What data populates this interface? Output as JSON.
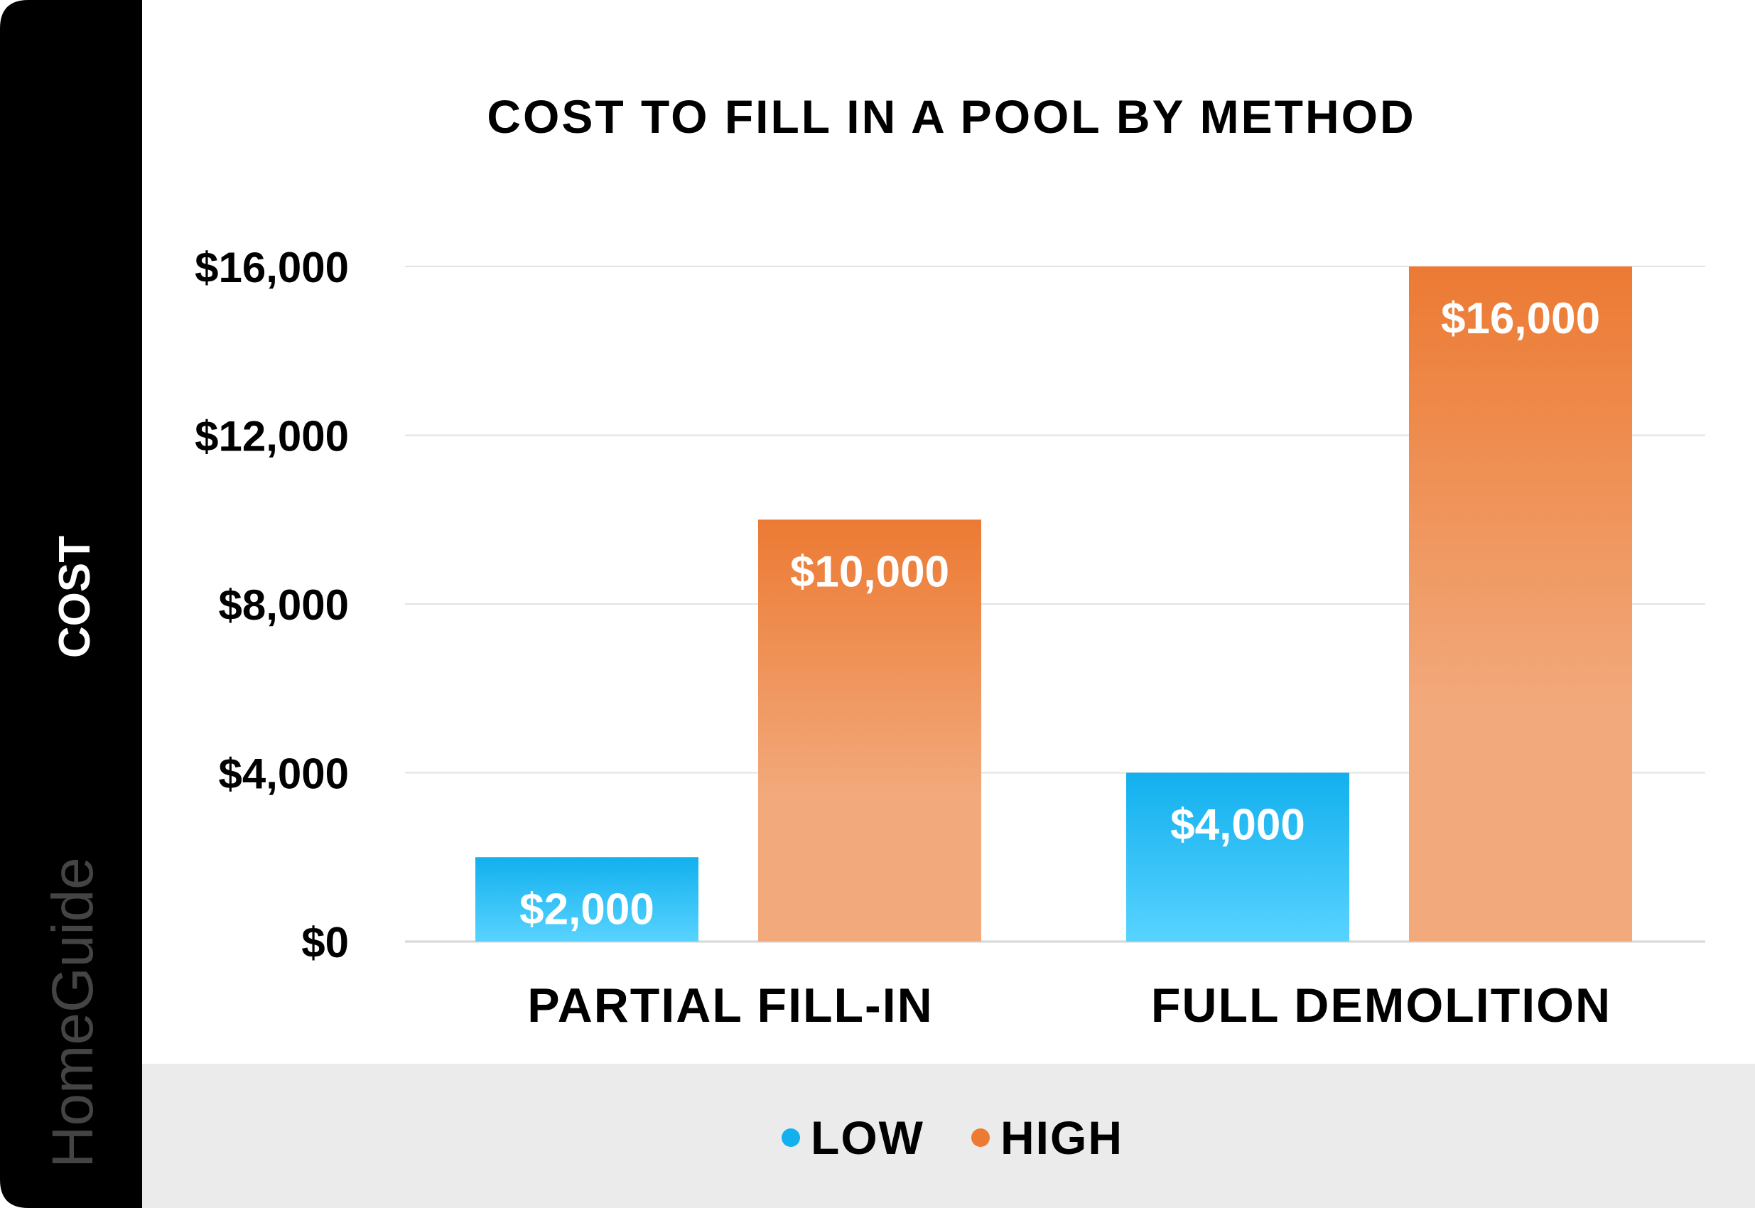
{
  "chart_data": {
    "type": "bar",
    "title": "COST TO FILL IN A POOL BY METHOD",
    "ylabel": "COST",
    "xlabel": "",
    "categories": [
      "PARTIAL FILL-IN",
      "FULL DEMOLITION"
    ],
    "series": [
      {
        "name": "LOW",
        "values": [
          2000,
          4000
        ],
        "labels": [
          "$2,000",
          "$4,000"
        ],
        "color": "#12b0ee"
      },
      {
        "name": "HIGH",
        "values": [
          10000,
          16000
        ],
        "labels": [
          "$10,000",
          "$16,000"
        ],
        "color": "#ec7a33"
      }
    ],
    "ylim": [
      0,
      16000
    ],
    "yticks": [
      0,
      4000,
      8000,
      12000,
      16000
    ],
    "ytick_labels": [
      "$0",
      "$4,000",
      "$8,000",
      "$12,000",
      "$16,000"
    ],
    "grid": true,
    "legend_position": "bottom"
  },
  "brand": {
    "logo": "HomeGuide"
  },
  "colors": {
    "sidebar": "#000000",
    "footer": "#ebebeb",
    "grid": "#e3e3e3",
    "low_light": "#58d3ff",
    "high_light": "#f2a97b"
  }
}
